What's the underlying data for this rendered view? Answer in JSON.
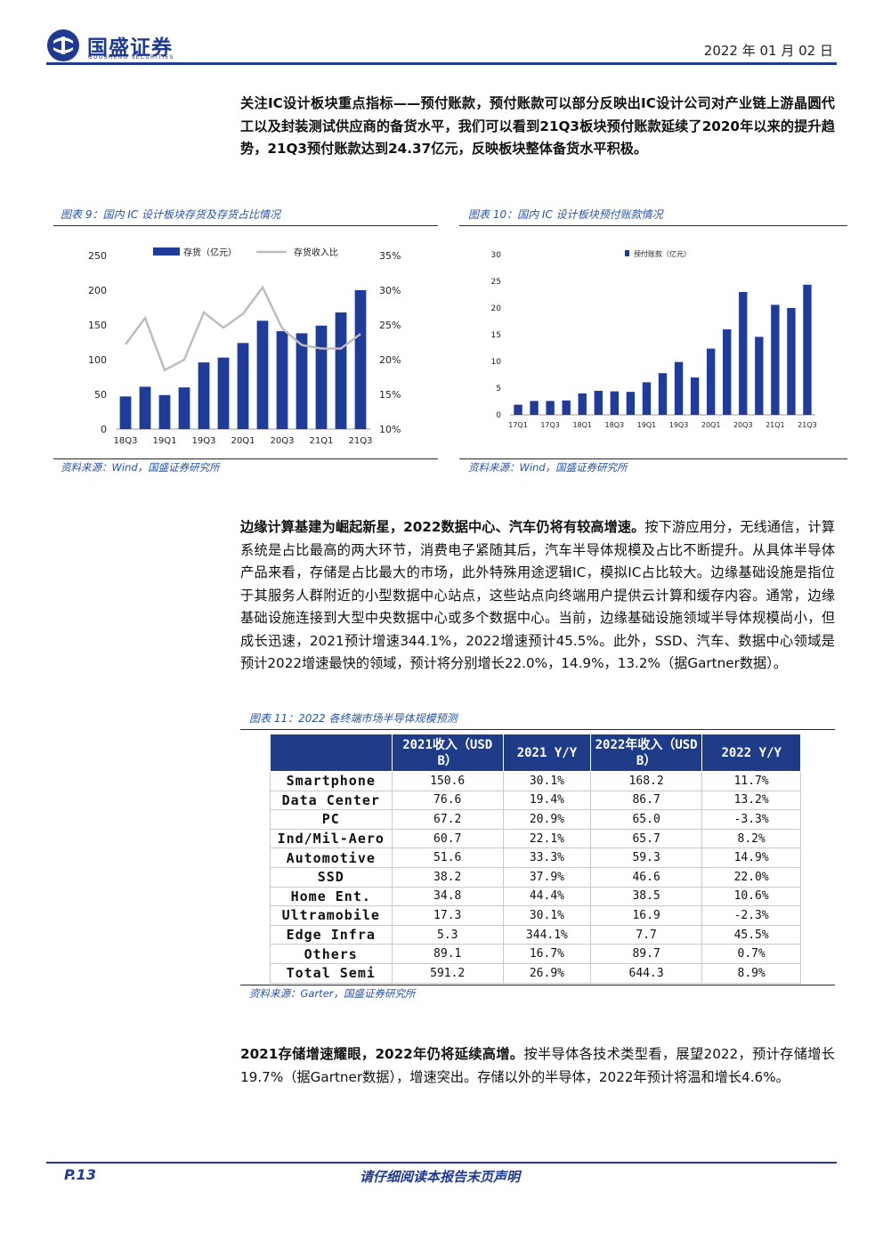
{
  "header": {
    "brand": "国盛证券",
    "brand_en": "GUOSHENG SECURITIES",
    "date": "2022 年 01 月 02 日",
    "brand_color": "#1f3a93"
  },
  "para1": {
    "bold_text": "关注IC设计板块重点指标——预付账款，预付账款可以部分反映出IC设计公司对产业链上游晶圆代工以及封装测试供应商的备货水平，我们可以看到21Q3板块预付账款延续了2020年以来的提升趋势，21Q3预付账款达到24.37亿元，反映板块整体备货水平积极。"
  },
  "figure9": {
    "caption": "图表 9：国内 IC 设计板块存货及存货占比情况",
    "source": "资料来源：Wind，国盛证券研究所"
  },
  "figure10": {
    "caption": "图表 10：国内 IC 设计板块预付账款情况",
    "source": "资料来源：Wind，国盛证券研究所"
  },
  "para2": {
    "bold_text": "边缘计算基建为崛起新星，2022数据中心、汽车仍将有较高增速。",
    "text": "按下游应用分，无线通信，计算系统是占比最高的两大环节，消费电子紧随其后，汽车半导体规模及占比不断提升。从具体半导体产品来看，存储是占比最大的市场，此外特殊用途逻辑IC，模拟IC占比较大。边缘基础设施是指位于其服务人群附近的小型数据中心站点，这些站点向终端用户提供云计算和缓存内容。通常，边缘基础设施连接到大型中央数据中心或多个数据中心。当前，边缘基础设施领域半导体规模尚小，但成长迅速，2021预计增速344.1%，2022增速预计45.5%。此外，SSD、汽车、数据中心领域是预计2022增速最快的领域，预计将分别增长22.0%，14.9%，13.2%（据Gartner数据）。"
  },
  "table11": {
    "caption": "图表 11：2022 各终端市场半导体规模预测",
    "source": "资料来源：Garter，国盛证券研究所",
    "headers": [
      "",
      "2021收入（USD B）",
      "2021 Y/Y",
      "2022年收入（USD B）",
      "2022 Y/Y"
    ],
    "rows": [
      [
        "Smartphone",
        "150.6",
        "30.1%",
        "168.2",
        "11.7%"
      ],
      [
        "Data Center",
        "76.6",
        "19.4%",
        "86.7",
        "13.2%"
      ],
      [
        "PC",
        "67.2",
        "20.9%",
        "65.0",
        "-3.3%"
      ],
      [
        "Ind/Mil-Aero",
        "60.7",
        "22.1%",
        "65.7",
        "8.2%"
      ],
      [
        "Automotive",
        "51.6",
        "33.3%",
        "59.3",
        "14.9%"
      ],
      [
        "SSD",
        "38.2",
        "37.9%",
        "46.6",
        "22.0%"
      ],
      [
        "Home Ent.",
        "34.8",
        "44.4%",
        "38.5",
        "10.6%"
      ],
      [
        "Ultramobile",
        "17.3",
        "30.1%",
        "16.9",
        "-2.3%"
      ],
      [
        "Edge Infra",
        "5.3",
        "344.1%",
        "7.7",
        "45.5%"
      ],
      [
        "Others",
        "89.1",
        "16.7%",
        "89.7",
        "0.7%"
      ],
      [
        "Total Semi",
        "591.2",
        "26.9%",
        "644.3",
        "8.9%"
      ]
    ]
  },
  "para3": {
    "bold_text": "2021存储增速耀眼，2022年仍将延续高增。",
    "text": "按半导体各技术类型看，展望2022，预计存储增长19.7%（据Gartner数据），增速突出。存储以外的半导体，2022年预计将温和增长4.6%。"
  },
  "footer": {
    "page": "P.13",
    "disclaimer": "请仔细阅读本报告末页声明"
  },
  "chart_data": [
    {
      "type": "bar",
      "categories": [
        "18Q3",
        "18Q4",
        "19Q1",
        "19Q2",
        "19Q3",
        "19Q4",
        "20Q1",
        "20Q2",
        "20Q3",
        "20Q4",
        "21Q1",
        "21Q2",
        "21Q3"
      ],
      "x_tick_labels": [
        "18Q3",
        "19Q1",
        "19Q3",
        "20Q1",
        "20Q3",
        "21Q1",
        "21Q3"
      ],
      "series": [
        {
          "name": "存货（亿元）",
          "type": "bar",
          "axis": "left",
          "color": "#1f3c9a",
          "values": [
            47,
            61,
            49,
            60,
            96,
            103,
            124,
            156,
            141,
            138,
            149,
            168,
            200
          ]
        },
        {
          "name": "存货收入比",
          "type": "line",
          "axis": "right",
          "color": "#bdbdbd",
          "values": [
            22.2,
            26.0,
            18.5,
            20.0,
            26.8,
            24.6,
            26.6,
            30.4,
            24.5,
            22.1,
            21.6,
            21.6,
            23.7
          ]
        }
      ],
      "ylim": [
        0,
        250
      ],
      "yticks": [
        "0",
        "50",
        "100",
        "150",
        "200",
        "250"
      ],
      "y2lim": [
        10,
        35
      ],
      "y2ticks": [
        "10%",
        "15%",
        "20%",
        "25%",
        "30%",
        "35%"
      ],
      "legend": "top"
    },
    {
      "type": "bar",
      "categories": [
        "17Q1",
        "17Q2",
        "17Q3",
        "17Q4",
        "18Q1",
        "18Q2",
        "18Q3",
        "18Q4",
        "19Q1",
        "19Q2",
        "19Q3",
        "19Q4",
        "20Q1",
        "20Q2",
        "20Q3",
        "20Q4",
        "21Q1",
        "21Q2",
        "21Q3"
      ],
      "x_tick_labels": [
        "17Q1",
        "17Q3",
        "18Q1",
        "18Q3",
        "19Q1",
        "19Q3",
        "20Q1",
        "20Q3",
        "21Q1",
        "21Q3"
      ],
      "series": [
        {
          "name": "预付账款（亿元）",
          "color": "#1f3c9a",
          "values": [
            1.9,
            2.6,
            2.6,
            2.7,
            4.0,
            4.5,
            4.4,
            4.3,
            6.1,
            7.8,
            9.9,
            7.0,
            12.4,
            16.0,
            23.0,
            14.6,
            20.6,
            20.0,
            24.37
          ]
        }
      ],
      "ylim": [
        0,
        30
      ],
      "yticks": [
        "0",
        "5",
        "10",
        "15",
        "20",
        "25",
        "30"
      ],
      "legend": "top"
    }
  ]
}
